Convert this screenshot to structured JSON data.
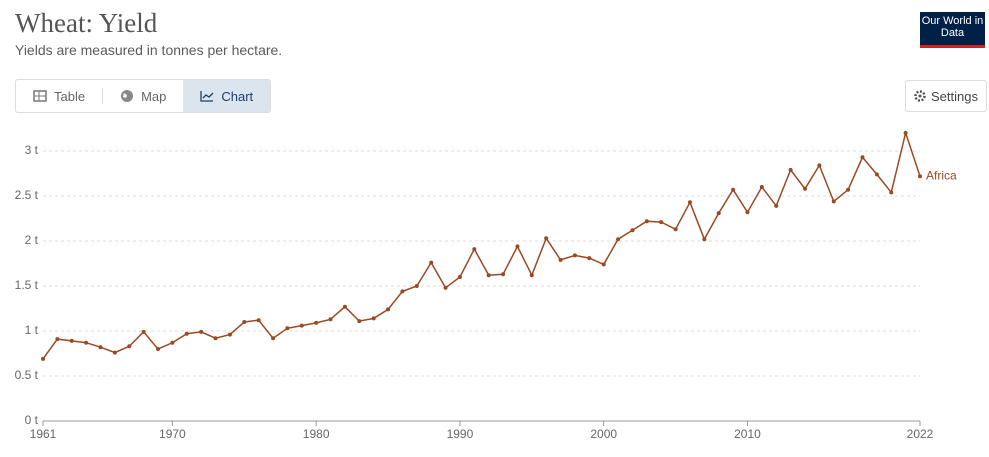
{
  "header": {
    "title": "Wheat: Yield",
    "subtitle": "Yields are measured in tonnes per hectare.",
    "logo": "Our World in Data"
  },
  "tabs": [
    "Table",
    "Map",
    "Chart"
  ],
  "settings": "Settings",
  "chart_data": {
    "type": "line",
    "x": [
      1961,
      1962,
      1963,
      1964,
      1965,
      1966,
      1967,
      1968,
      1969,
      1970,
      1971,
      1972,
      1973,
      1974,
      1975,
      1976,
      1977,
      1978,
      1979,
      1980,
      1981,
      1982,
      1983,
      1984,
      1985,
      1986,
      1987,
      1988,
      1989,
      1990,
      1991,
      1992,
      1993,
      1994,
      1995,
      1996,
      1997,
      1998,
      1999,
      2000,
      2001,
      2002,
      2003,
      2004,
      2005,
      2006,
      2007,
      2008,
      2009,
      2010,
      2011,
      2012,
      2013,
      2014,
      2015,
      2016,
      2017,
      2018,
      2019,
      2020,
      2021,
      2022
    ],
    "series": [
      {
        "name": "Africa",
        "color": "#9a4a22",
        "values": [
          0.69,
          0.91,
          0.89,
          0.87,
          0.82,
          0.76,
          0.83,
          0.99,
          0.8,
          0.87,
          0.97,
          0.99,
          0.92,
          0.96,
          1.1,
          1.12,
          0.92,
          1.03,
          1.06,
          1.09,
          1.13,
          1.27,
          1.11,
          1.14,
          1.24,
          1.44,
          1.5,
          1.76,
          1.48,
          1.6,
          1.91,
          1.62,
          1.63,
          1.94,
          1.62,
          2.03,
          1.79,
          1.84,
          1.81,
          1.74,
          2.02,
          2.12,
          2.22,
          2.21,
          2.13,
          2.43,
          2.02,
          2.31,
          2.57,
          2.32,
          2.6,
          2.39,
          2.79,
          2.58,
          2.84,
          2.44,
          2.57,
          2.93,
          2.74,
          2.54,
          3.2,
          2.72
        ]
      }
    ],
    "xlim": [
      1961,
      2022
    ],
    "xticks": [
      1961,
      1970,
      1980,
      1990,
      2000,
      2010,
      2022
    ],
    "ylim": [
      0,
      3.2
    ],
    "yticks": [
      {
        "value": 0,
        "label": "0 t"
      },
      {
        "value": 0.5,
        "label": "0.5 t"
      },
      {
        "value": 1,
        "label": "1 t"
      },
      {
        "value": 1.5,
        "label": "1.5 t"
      },
      {
        "value": 2,
        "label": "2 t"
      },
      {
        "value": 2.5,
        "label": "2.5 t"
      },
      {
        "value": 3,
        "label": "3 t"
      }
    ],
    "grid": true
  }
}
